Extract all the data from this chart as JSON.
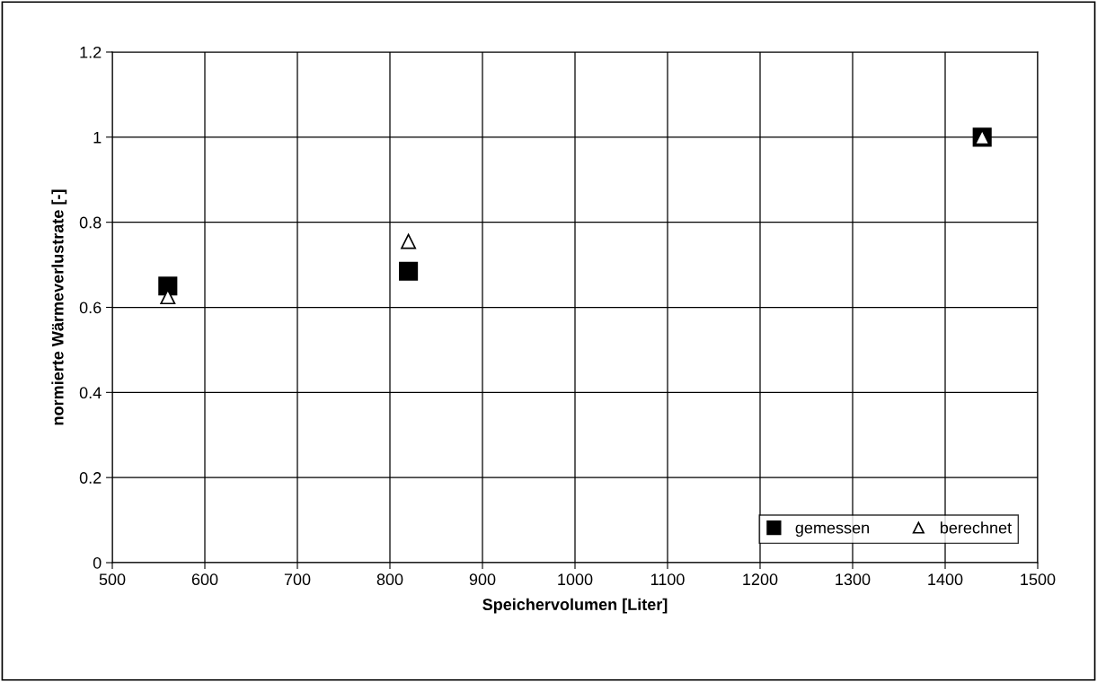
{
  "chart_data": {
    "type": "scatter",
    "xlabel": "Speichervolumen [Liter]",
    "ylabel": "normierte Wärmeverlustrate [-]",
    "series": [
      {
        "name": "gemessen",
        "color": "#000000",
        "marker": "square",
        "x": [
          560,
          820,
          1440
        ],
        "values": [
          0.65,
          0.685,
          1.0
        ]
      },
      {
        "name": "berechnet",
        "color": "#ffffff",
        "marker": "triangle",
        "x": [
          560,
          820,
          1440
        ],
        "values": [
          0.625,
          0.755,
          1.0
        ]
      }
    ],
    "xlim": [
      500,
      1500
    ],
    "xticks": [
      500,
      600,
      700,
      800,
      900,
      1000,
      1100,
      1200,
      1300,
      1400,
      1500
    ],
    "ylim": [
      0,
      1.2
    ],
    "yticks": [
      0,
      0.2,
      0.4,
      0.6,
      0.8,
      1,
      1.2
    ],
    "grid": true,
    "legend": "bottom right"
  }
}
